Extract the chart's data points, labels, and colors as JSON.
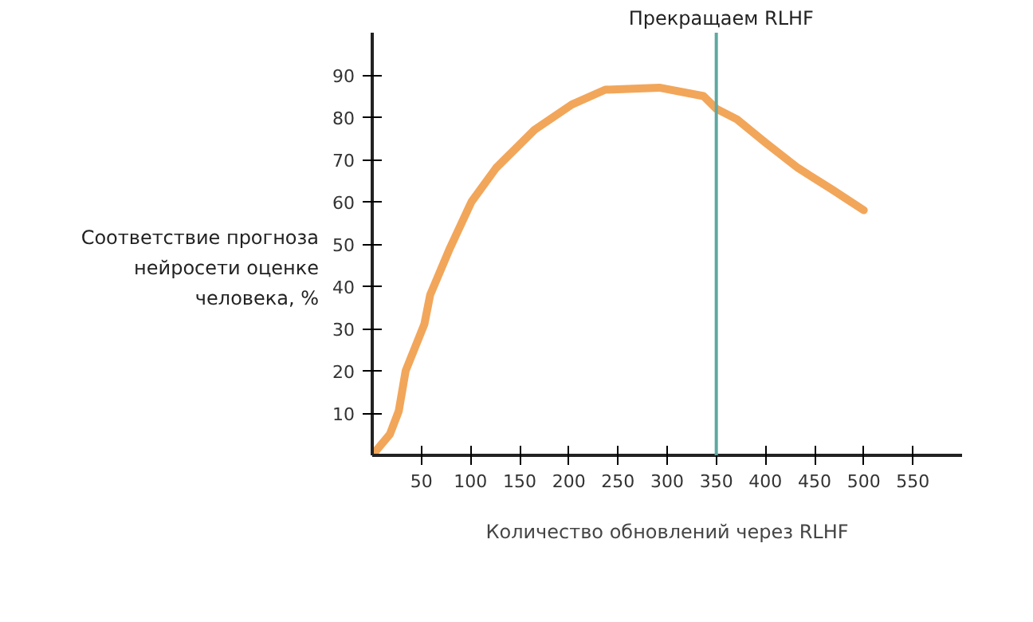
{
  "chart_data": {
    "type": "line",
    "xlabel": "Количество обновлений через RLHF",
    "ylabel": "Соответствие прогноза нейросети оценке человека, %",
    "x": [
      0,
      18,
      27,
      34,
      53,
      59,
      79,
      101,
      126,
      165,
      203,
      237,
      292,
      337,
      350,
      371,
      400,
      433,
      467,
      500
    ],
    "series": [
      {
        "color": "#f2a65a",
        "values": [
          0,
          5,
          10.5,
          20,
          31,
          38,
          49,
          60,
          68,
          77,
          83,
          86.5,
          87,
          85,
          82,
          79.5,
          74,
          68,
          63,
          58
        ]
      }
    ],
    "xlim": [
      0,
      600
    ],
    "ylim": [
      0,
      100
    ],
    "xticks": [
      50,
      100,
      150,
      200,
      250,
      300,
      350,
      400,
      450,
      500,
      550
    ],
    "yticks": [
      10,
      20,
      30,
      40,
      50,
      60,
      70,
      80,
      90
    ],
    "ref_lines": [
      {
        "axis": "x",
        "value": 350,
        "label": "Прекращаем RLHF",
        "color": "#5fa8a0"
      }
    ],
    "grid": false,
    "line_style": "solid",
    "marker": "none"
  }
}
